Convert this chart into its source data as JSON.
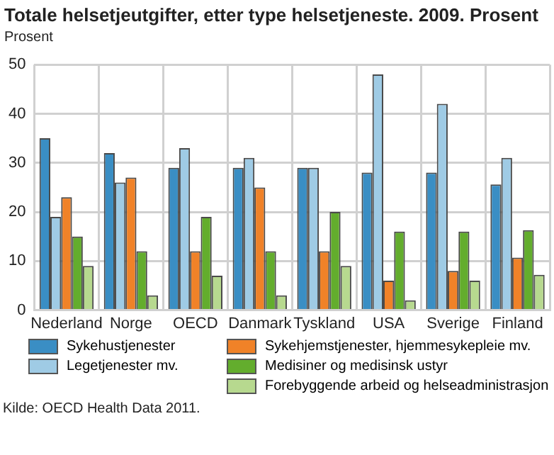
{
  "chart_data": {
    "type": "bar",
    "title": "Totale helsetjeutgifter, etter type helsetjeneste. 2009. Prosent",
    "ylabel": "Prosent",
    "categories": [
      "Nederland",
      "Norge",
      "OECD",
      "Danmark",
      "Tyskland",
      "USA",
      "Sverige",
      "Finland"
    ],
    "series": [
      {
        "name": "Sykehustjenester",
        "color": "#3a8ec4",
        "values": [
          35,
          32,
          29,
          29,
          29,
          28,
          28,
          25.6
        ]
      },
      {
        "name": "Legetjenester mv.",
        "color": "#9fcbe5",
        "values": [
          19,
          26,
          33,
          31,
          29,
          48,
          42,
          31
        ]
      },
      {
        "name": "Sykehjemstjenester, hjemmesykepleie mv.",
        "color": "#f08228",
        "values": [
          23,
          27,
          12,
          25,
          12,
          6,
          8,
          10.7
        ]
      },
      {
        "name": "Medisiner og medisinsk ustyr",
        "color": "#63ad2d",
        "values": [
          15,
          12,
          19,
          12,
          20,
          16,
          16,
          16.3
        ]
      },
      {
        "name": "Forebyggende arbeid og helseadministrasjon",
        "color": "#b7d98f",
        "values": [
          9,
          3,
          7,
          3,
          9,
          2,
          6,
          7.2
        ]
      }
    ],
    "ylim": [
      0,
      50
    ],
    "yticks": [
      0,
      10,
      20,
      30,
      40,
      50
    ],
    "grid": true,
    "legend": "bottom",
    "annotations": [
      "Kilde: OECD Health Data 2011."
    ]
  }
}
